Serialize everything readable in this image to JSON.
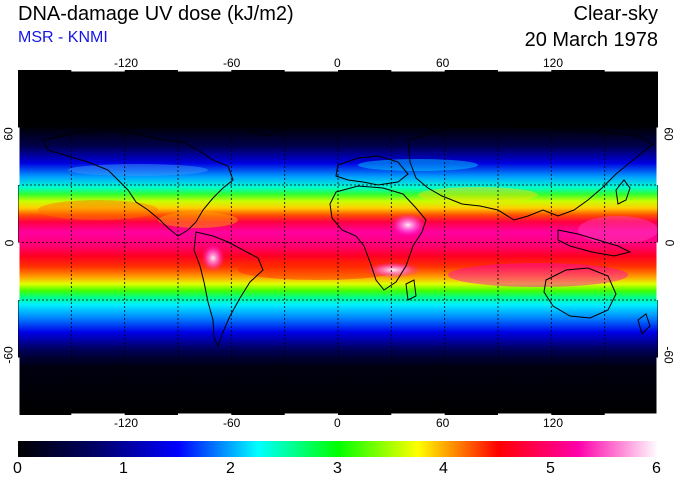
{
  "header": {
    "title": "DNA-damage UV dose (kJ/m2)",
    "subtitle": "MSR - KNMI",
    "condition": "Clear-sky",
    "date": "20 March 1978"
  },
  "map": {
    "projection": "equirectangular",
    "lon_range": [
      -180,
      180
    ],
    "lat_range": [
      -90,
      90
    ],
    "lon_ticks": [
      "-120",
      "-60",
      "0",
      "60",
      "120"
    ],
    "lat_ticks": [
      "60",
      "0",
      "-60"
    ],
    "grid": "dashed every 30 degrees"
  },
  "colorbar": {
    "labels": [
      "0",
      "1",
      "2",
      "3",
      "4",
      "5",
      "6"
    ],
    "stops": [
      "#000000",
      "#00006a",
      "#0000ff",
      "#00ffff",
      "#00ff00",
      "#ffff00",
      "#ff0000",
      "#ff00aa",
      "#ffffff"
    ]
  }
}
